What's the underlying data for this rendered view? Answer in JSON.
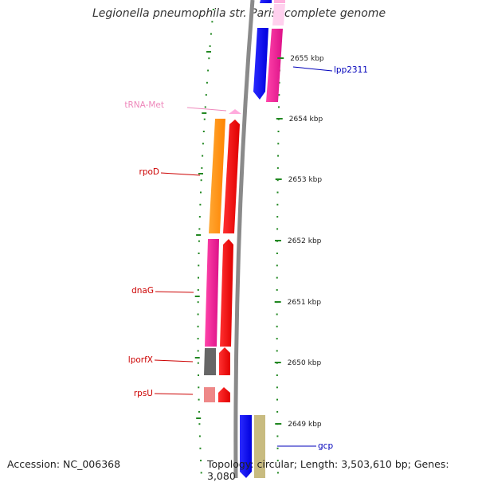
{
  "title": "Legionella pneumophila str. Paris, complete genome",
  "footer": {
    "accession": "Accession: NC_006368",
    "topology": "Topology: circular; Length: 3,503,610 bp; Genes: 3,080"
  },
  "scale": {
    "labels": [
      {
        "value": 2655,
        "text": "2655 kbp"
      },
      {
        "value": 2654,
        "text": "2654 kbp"
      },
      {
        "value": 2653,
        "text": "2653 kbp"
      },
      {
        "value": 2652,
        "text": "2652 kbp"
      },
      {
        "value": 2651,
        "text": "2651 kbp"
      },
      {
        "value": 2650,
        "text": "2650 kbp"
      },
      {
        "value": 2649,
        "text": "2649 kbp"
      }
    ]
  },
  "gene_labels": [
    {
      "name": "lpp2311",
      "strand": "right",
      "color": "#0000bb"
    },
    {
      "name": "tRNA-Met",
      "strand": "left",
      "color": "#ee88bb"
    },
    {
      "name": "rpoD",
      "strand": "left",
      "color": "#cc0000"
    },
    {
      "name": "dnaG",
      "strand": "left",
      "color": "#cc0000"
    },
    {
      "name": "lporfX",
      "strand": "left",
      "color": "#cc0000"
    },
    {
      "name": "rpsU",
      "strand": "left",
      "color": "#cc0000"
    },
    {
      "name": "gcp",
      "strand": "right",
      "color": "#0000bb"
    }
  ],
  "colors": {
    "backbone": "#888888",
    "tick": "#228822",
    "cds_forward": "#ff0000",
    "cds_reverse": "#0000ff",
    "orange": "#ff8c00",
    "magenta": "#ee2299",
    "gray": "#666666",
    "salmon": "#ee8888",
    "tan": "#c8bb80",
    "pink_light": "#ffaadd"
  }
}
